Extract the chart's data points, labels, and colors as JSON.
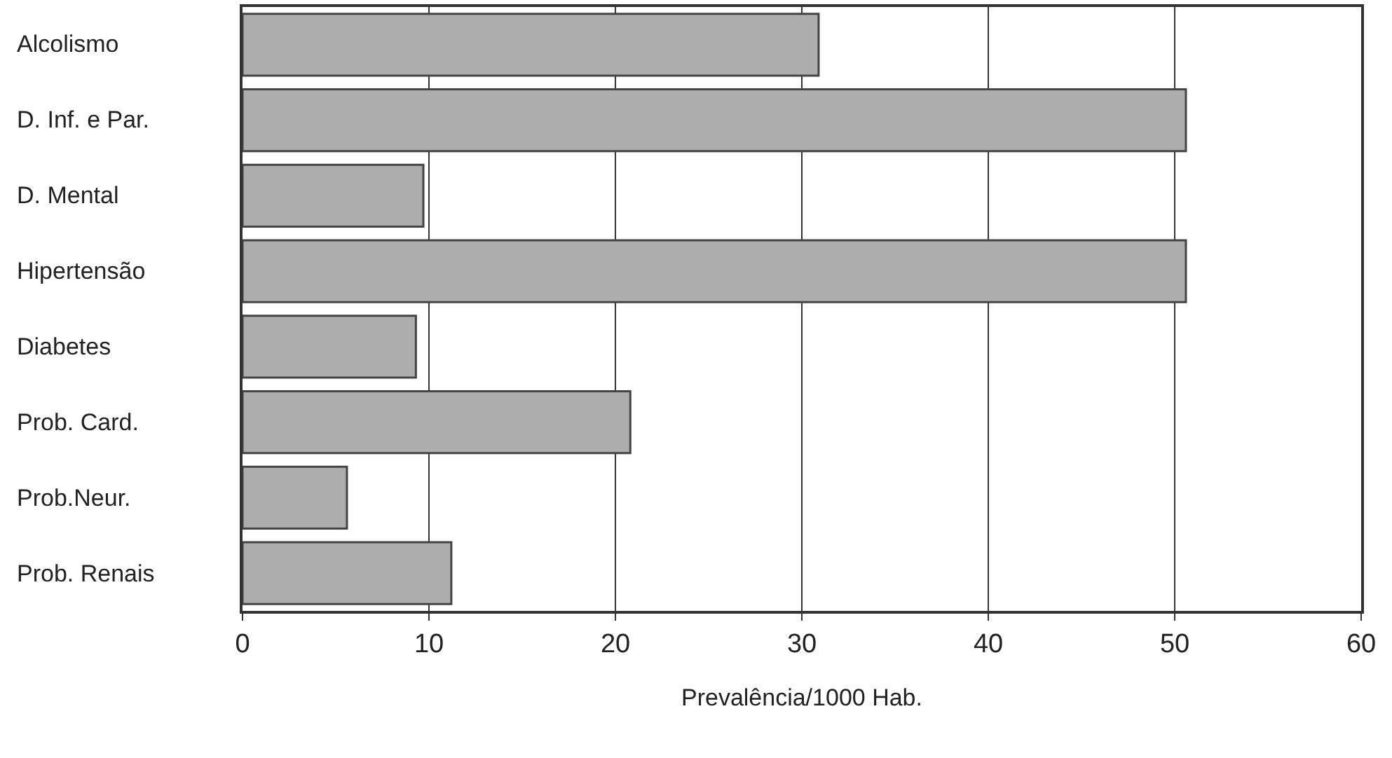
{
  "chart_data": {
    "type": "bar",
    "orientation": "horizontal",
    "xlabel": "Prevalência/1000 Hab.",
    "categories": [
      "Alcolismo",
      "D. Inf. e Par.",
      "D. Mental",
      "Hipertensão",
      "Diabetes",
      "Prob. Card.",
      "Prob.Neur.",
      "Prob. Renais"
    ],
    "values": [
      30.9,
      50.6,
      9.7,
      50.6,
      9.3,
      20.8,
      5.6,
      11.2
    ],
    "color": "#adadad",
    "xlim": [
      0,
      60
    ],
    "xticks": [
      0,
      10,
      20,
      30,
      40,
      50,
      60
    ],
    "grid": "x"
  }
}
